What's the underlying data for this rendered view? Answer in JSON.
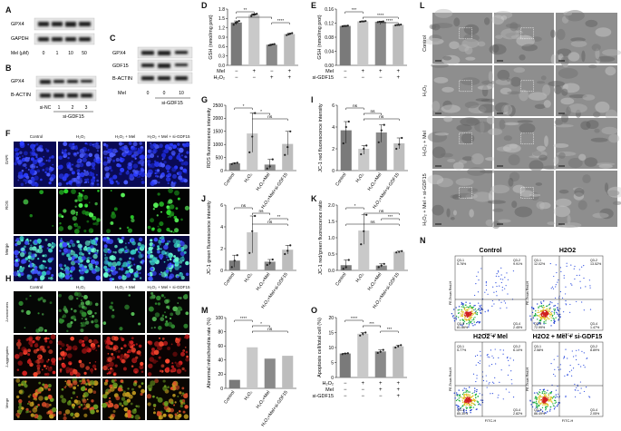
{
  "panels": {
    "A": {
      "letter": "A",
      "rows": [
        "GPX4",
        "GAPDH"
      ],
      "condition_label": "Mel (μM)",
      "doses": [
        "0",
        "1",
        "10",
        "50"
      ]
    },
    "B": {
      "letter": "B",
      "rows": [
        "GPX4",
        "B-ACTIN"
      ],
      "lanes": [
        "si-NC",
        "1",
        "2",
        "3"
      ],
      "group_label": "si-GDF15"
    },
    "C": {
      "letter": "C",
      "rows": [
        "GPX4",
        "GDF15",
        "B-ACTIN"
      ],
      "condition_label": "Mel",
      "values": [
        "0",
        "0",
        "10"
      ],
      "group_label": "si-GDF15"
    },
    "D": {
      "letter": "D",
      "ylabel": "GSH (nmol/mg prot)",
      "yticks": [
        "0.0",
        "0.3",
        "0.6",
        "0.9",
        "1.2",
        "1.5",
        "1.8"
      ],
      "sig": [
        "**",
        "****",
        "****"
      ],
      "condition_rows": [
        {
          "label": "Mel",
          "marks": [
            "−",
            "+",
            "−",
            "+"
          ]
        },
        {
          "label": "H₂O₂",
          "marks": [
            "−",
            "−",
            "+",
            "+"
          ]
        }
      ]
    },
    "E": {
      "letter": "E",
      "ylabel": "GSH (nmol/mg prot)",
      "yticks": [
        "0.00",
        "0.04",
        "0.08",
        "0.12",
        "0.16"
      ],
      "sig": [
        "***",
        "****",
        "****"
      ],
      "condition_rows": [
        {
          "label": "Mel",
          "marks": [
            "−",
            "+",
            "+",
            "+"
          ]
        },
        {
          "label": "si-GDF15",
          "marks": [
            "−",
            "−",
            "−",
            "+"
          ]
        }
      ]
    },
    "F": {
      "letter": "F",
      "columns": [
        "Control",
        "H₂O₂",
        "H₂O₂ + Mel",
        "H₂O₂ + Mel + si-GDF15"
      ],
      "rows": [
        "DAPI",
        "ROS",
        "Merge"
      ]
    },
    "G": {
      "letter": "G",
      "ylabel": "ROS fluorescence intensity",
      "yticks": [
        "0",
        "500",
        "1000",
        "1500",
        "2000",
        "2500"
      ],
      "sig": [
        "*",
        "*",
        "ns"
      ]
    },
    "H": {
      "letter": "H",
      "columns": [
        "Control",
        "H₂O₂",
        "H₂O₂ + Mel",
        "H₂O₂ + Mel + si-GDF15"
      ],
      "rows": [
        "J-monomers",
        "J-aggregates",
        "Merge"
      ]
    },
    "I": {
      "letter": "I",
      "ylabel": "JC-1 red fluorescence intensity",
      "yticks": [
        "0",
        "2",
        "4",
        "6"
      ],
      "sig": [
        "ns",
        "ns",
        "ns"
      ]
    },
    "J": {
      "letter": "J",
      "ylabel": "JC-1 green fluorescence intensity",
      "yticks": [
        "0",
        "2",
        "4",
        "6"
      ],
      "sig": [
        "ns",
        "ns",
        "**",
        "ns"
      ]
    },
    "K": {
      "letter": "K",
      "ylabel": "JC-1 red/green fluorescence ratio",
      "yticks": [
        "0.0",
        "0.5",
        "1.0",
        "1.5",
        "2.0"
      ],
      "sig": [
        "*",
        "ns",
        "***",
        "ns"
      ]
    },
    "L": {
      "letter": "L",
      "rows": [
        "Control",
        "H₂O₂",
        "H₂O₂ + Mel",
        "H₂O₂ + Mel + si-GDF15"
      ]
    },
    "M": {
      "letter": "M",
      "ylabel": "Abnormal mitochondria rate (%)",
      "yticks": [
        "0",
        "20",
        "40",
        "60",
        "80",
        "100"
      ],
      "sig": [
        "****",
        "*",
        "ns"
      ]
    },
    "N": {
      "letter": "N",
      "titles": [
        "Control",
        "H2O2",
        "H2O2 + Mel",
        "H2O2 + Mel + si-GDF15"
      ],
      "xlabel": "FITC-H",
      "ylabel": "PE-Texas Red-H",
      "quadrants": [
        [
          "Q3-1",
          "Q3-2",
          "Q3-3",
          "Q3-4"
        ],
        [
          "Q3-1",
          "Q3-2",
          "Q3-3",
          "Q3-4"
        ],
        [
          "Q3-1",
          "Q3-2",
          "Q3-3",
          "Q3-4"
        ],
        [
          "Q3-1",
          "Q3-2",
          "Q3-3",
          "Q3-4"
        ]
      ],
      "percent": [
        [
          "5.78%",
          "9.91%",
          "81.86%",
          "2.45%"
        ],
        [
          "12.02%",
          "13.52%",
          "72.99%",
          "1.47%"
        ],
        [
          "5.77%",
          "6.10%",
          "85.30%",
          "2.82%"
        ],
        [
          "2.58%",
          "8.89%",
          "86.49%",
          "2.05%"
        ]
      ]
    },
    "O": {
      "letter": "O",
      "ylabel": "Apoptosis cell/total cell (%)",
      "yticks": [
        "0",
        "5",
        "10",
        "15",
        "20"
      ],
      "sig": [
        "****",
        "***",
        "***"
      ],
      "condition_rows": [
        {
          "label": "H₂O₂",
          "marks": [
            "−",
            "+",
            "+",
            "+"
          ]
        },
        {
          "label": "Mel",
          "marks": [
            "−",
            "−",
            "+",
            "+"
          ]
        },
        {
          "label": "si-GDF15",
          "marks": [
            "−",
            "−",
            "−",
            "+"
          ]
        }
      ]
    }
  },
  "group_labels": [
    "Control",
    "H₂O₂",
    "H₂O₂+Mel",
    "H₂O₂+Mel+si-GDF15"
  ],
  "colors": {
    "control": "#7a7a7a",
    "h2o2": "#c9c9c9",
    "mel": "#8a8a8a",
    "sigdf15": "#bdbdbd",
    "dot": "#222222"
  },
  "chart_data": [
    {
      "panel": "D",
      "type": "bar",
      "ylabel": "GSH (nmol/mg prot)",
      "ylim": [
        0,
        1.8
      ],
      "values": [
        1.37,
        1.62,
        0.66,
        1.0
      ],
      "points": [
        [
          1.3,
          1.36,
          1.38,
          1.42
        ],
        [
          1.58,
          1.62,
          1.63,
          1.65
        ],
        [
          0.64,
          0.65,
          0.67,
          0.68
        ],
        [
          0.97,
          0.99,
          1.01,
          1.03
        ]
      ]
    },
    {
      "panel": "E",
      "type": "bar",
      "ylabel": "GSH (nmol/mg prot)",
      "ylim": [
        0,
        0.16
      ],
      "values": [
        0.112,
        0.125,
        0.124,
        0.115
      ],
      "points": [
        [
          0.111,
          0.112,
          0.112,
          0.113
        ],
        [
          0.124,
          0.125,
          0.125,
          0.126
        ],
        [
          0.123,
          0.124,
          0.124,
          0.125
        ],
        [
          0.114,
          0.115,
          0.115,
          0.116
        ]
      ]
    },
    {
      "panel": "G",
      "type": "bar",
      "ylabel": "ROS fluorescence intensity",
      "ylim": [
        0,
        2500
      ],
      "categories": [
        "Control",
        "H₂O₂",
        "H₂O₂+Mel",
        "H₂O₂+Mel+si-GDF15"
      ],
      "values": [
        280,
        1420,
        230,
        1020
      ],
      "points": [
        [
          250,
          280,
          300
        ],
        [
          700,
          1300,
          2200
        ],
        [
          80,
          160,
          430
        ],
        [
          600,
          900,
          1500
        ]
      ]
    },
    {
      "panel": "I",
      "type": "bar",
      "ylabel": "JC-1 red fluorescence intensity",
      "ylim": [
        0,
        6
      ],
      "categories": [
        "Control",
        "H₂O₂",
        "H₂O₂+Mel",
        "H₂O₂+Mel+si-GDF15"
      ],
      "values": [
        3.7,
        2.0,
        3.5,
        2.5
      ],
      "points": [
        [
          2.5,
          4.0,
          4.5
        ],
        [
          1.5,
          2.0,
          2.3
        ],
        [
          2.6,
          3.7,
          4.2
        ],
        [
          2.0,
          2.4,
          3.0
        ]
      ]
    },
    {
      "panel": "J",
      "type": "bar",
      "ylabel": "JC-1 green fluorescence intensity",
      "ylim": [
        0,
        6
      ],
      "categories": [
        "Control",
        "H₂O₂",
        "H₂O₂+Mel",
        "H₂O₂+Mel+si-GDF15"
      ],
      "values": [
        0.9,
        3.5,
        0.8,
        1.9
      ],
      "points": [
        [
          0.3,
          0.9,
          1.4
        ],
        [
          1.6,
          3.6,
          5.0
        ],
        [
          0.5,
          0.7,
          1.0
        ],
        [
          1.5,
          1.8,
          2.3
        ]
      ]
    },
    {
      "panel": "K",
      "type": "bar",
      "ylabel": "JC-1 red/green fluorescence ratio",
      "ylim": [
        0,
        2.0
      ],
      "categories": [
        "Control",
        "H₂O₂",
        "H₂O₂+Mel",
        "H₂O₂+Mel+si-GDF15"
      ],
      "values": [
        0.16,
        1.22,
        0.15,
        0.57
      ],
      "points": [
        [
          0.05,
          0.1,
          0.32
        ],
        [
          0.8,
          1.2,
          1.7
        ],
        [
          0.1,
          0.15,
          0.2
        ],
        [
          0.55,
          0.57,
          0.59
        ]
      ]
    },
    {
      "panel": "M",
      "type": "bar",
      "ylabel": "Abnormal mitochondria rate (%)",
      "ylim": [
        0,
        100
      ],
      "categories": [
        "Control",
        "H₂O₂",
        "H₂O₂+Mel",
        "H₂O₂+Mel+si-GDF15"
      ],
      "values": [
        12,
        58,
        42,
        46
      ]
    },
    {
      "panel": "O",
      "type": "bar",
      "ylabel": "Apoptosis cell/total cell (%)",
      "ylim": [
        0,
        20
      ],
      "values": [
        8.0,
        14.6,
        8.7,
        10.4
      ],
      "points": [
        [
          7.8,
          8.0,
          8.1
        ],
        [
          14.0,
          14.6,
          15.0
        ],
        [
          8.2,
          8.6,
          9.2
        ],
        [
          10.0,
          10.4,
          10.8
        ]
      ]
    }
  ]
}
